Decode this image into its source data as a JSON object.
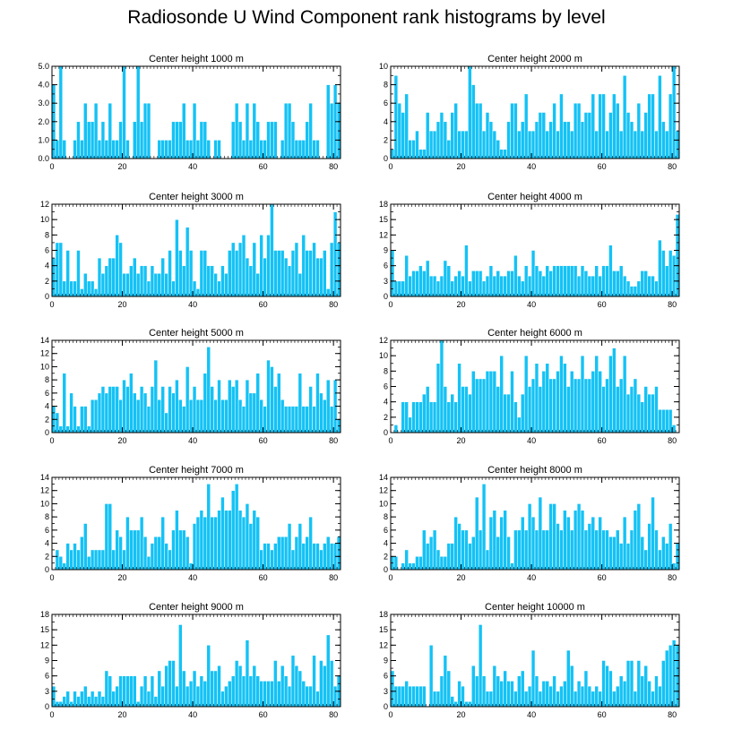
{
  "title": "Radiosonde U Wind Component rank histograms by level",
  "colors": {
    "bar": "#14c2f5",
    "bar_edge": "#ffffff",
    "axis": "#000000"
  },
  "chart_data": [
    {
      "type": "bar",
      "title": "Center height 1000 m",
      "xlim": [
        0,
        82
      ],
      "ylim": [
        0,
        5
      ],
      "xticks": [
        0,
        20,
        40,
        60,
        80
      ],
      "yticks": [
        0,
        1,
        2,
        3,
        4,
        5
      ],
      "ytick_labels": [
        "0.0",
        "1.0",
        "2.0",
        "3.0",
        "4.0",
        "5.0"
      ],
      "values": [
        4,
        1,
        5,
        1,
        0,
        0,
        1,
        2,
        1,
        3,
        2,
        2,
        3,
        1,
        2,
        1,
        3,
        1,
        1,
        2,
        5,
        1,
        0,
        2,
        5,
        2,
        3,
        3,
        0,
        0,
        1,
        1,
        1,
        1,
        2,
        2,
        2,
        3,
        1,
        1,
        3,
        1,
        2,
        2,
        1,
        0,
        1,
        1,
        0,
        0,
        0,
        2,
        3,
        2,
        1,
        3,
        1,
        3,
        2,
        1,
        1,
        2,
        2,
        2,
        0,
        1,
        3,
        3,
        2,
        1,
        1,
        1,
        2,
        3,
        1,
        1,
        0,
        0,
        4,
        3,
        4,
        3
      ]
    },
    {
      "type": "bar",
      "title": "Center height 2000 m",
      "xlim": [
        0,
        82
      ],
      "ylim": [
        0,
        10
      ],
      "xticks": [
        0,
        20,
        40,
        60,
        80
      ],
      "yticks": [
        0,
        2,
        4,
        6,
        8,
        10
      ],
      "ytick_labels": [
        "0",
        "2",
        "4",
        "6",
        "8",
        "10"
      ],
      "values": [
        1,
        9,
        6,
        5,
        7,
        2,
        2,
        3,
        1,
        1,
        5,
        3,
        3,
        4,
        5,
        4,
        2,
        5,
        6,
        3,
        3,
        3,
        10,
        8,
        6,
        6,
        3,
        5,
        4,
        3,
        2,
        1,
        1,
        4,
        6,
        6,
        3,
        4,
        7,
        3,
        3,
        4,
        5,
        5,
        3,
        4,
        6,
        3,
        7,
        4,
        4,
        3,
        6,
        6,
        4,
        5,
        5,
        7,
        3,
        7,
        7,
        3,
        5,
        7,
        6,
        3,
        9,
        5,
        4,
        3,
        6,
        3,
        5,
        7,
        7,
        3,
        9,
        4,
        3,
        7,
        10,
        3
      ]
    },
    {
      "type": "bar",
      "title": "Center height 3000 m",
      "xlim": [
        0,
        82
      ],
      "ylim": [
        0,
        12
      ],
      "xticks": [
        0,
        20,
        40,
        60,
        80
      ],
      "yticks": [
        0,
        2,
        4,
        6,
        8,
        10,
        12
      ],
      "ytick_labels": [
        "0",
        "2",
        "4",
        "6",
        "8",
        "10",
        "12"
      ],
      "values": [
        5,
        7,
        7,
        2,
        6,
        2,
        2,
        6,
        1,
        3,
        2,
        2,
        1,
        5,
        3,
        4,
        5,
        5,
        8,
        7,
        3,
        3,
        4,
        5,
        3,
        4,
        4,
        2,
        4,
        3,
        3,
        5,
        3,
        6,
        2,
        10,
        6,
        4,
        9,
        6,
        2,
        1,
        6,
        6,
        4,
        4,
        3,
        2,
        4,
        3,
        6,
        7,
        6,
        7,
        8,
        5,
        4,
        7,
        3,
        8,
        5,
        8,
        12,
        6,
        6,
        6,
        5,
        4,
        6,
        7,
        3,
        8,
        6,
        6,
        7,
        5,
        5,
        6,
        1,
        7,
        11,
        7
      ]
    },
    {
      "type": "bar",
      "title": "Center height 4000 m",
      "xlim": [
        0,
        82
      ],
      "ylim": [
        0,
        18
      ],
      "xticks": [
        0,
        20,
        40,
        60,
        80
      ],
      "yticks": [
        0,
        3,
        6,
        9,
        12,
        15,
        18
      ],
      "ytick_labels": [
        "0",
        "3",
        "6",
        "9",
        "12",
        "15",
        "18"
      ],
      "values": [
        9,
        3,
        3,
        3,
        8,
        4,
        5,
        5,
        6,
        5,
        7,
        4,
        4,
        3,
        4,
        7,
        6,
        3,
        4,
        5,
        4,
        10,
        3,
        5,
        5,
        5,
        3,
        4,
        6,
        4,
        5,
        4,
        4,
        5,
        5,
        8,
        4,
        3,
        6,
        4,
        9,
        6,
        5,
        4,
        6,
        5,
        6,
        6,
        6,
        6,
        6,
        6,
        6,
        4,
        6,
        5,
        4,
        4,
        6,
        4,
        6,
        6,
        10,
        5,
        5,
        6,
        4,
        3,
        2,
        2,
        3,
        5,
        5,
        4,
        4,
        3,
        11,
        9,
        6,
        9,
        8,
        16
      ]
    },
    {
      "type": "bar",
      "title": "Center height 5000 m",
      "xlim": [
        0,
        82
      ],
      "ylim": [
        0,
        14
      ],
      "xticks": [
        0,
        20,
        40,
        60,
        80
      ],
      "yticks": [
        0,
        2,
        4,
        6,
        8,
        10,
        12,
        14
      ],
      "ytick_labels": [
        "0",
        "2",
        "4",
        "6",
        "8",
        "10",
        "12",
        "14"
      ],
      "values": [
        4,
        3,
        1,
        9,
        1,
        6,
        4,
        1,
        4,
        4,
        1,
        5,
        5,
        6,
        7,
        6,
        7,
        7,
        7,
        5,
        8,
        7,
        9,
        6,
        5,
        7,
        6,
        4,
        7,
        11,
        5,
        7,
        3,
        7,
        6,
        8,
        5,
        4,
        10,
        5,
        7,
        5,
        5,
        9,
        13,
        7,
        5,
        8,
        5,
        5,
        8,
        7,
        8,
        5,
        4,
        8,
        6,
        6,
        9,
        5,
        4,
        11,
        10,
        7,
        9,
        5,
        4,
        4,
        4,
        4,
        9,
        4,
        4,
        7,
        4,
        9,
        6,
        5,
        8,
        4,
        8,
        2
      ]
    },
    {
      "type": "bar",
      "title": "Center height 6000 m",
      "xlim": [
        0,
        82
      ],
      "ylim": [
        0,
        12
      ],
      "xticks": [
        0,
        20,
        40,
        60,
        80
      ],
      "yticks": [
        0,
        2,
        4,
        6,
        8,
        10,
        12
      ],
      "ytick_labels": [
        "0",
        "2",
        "4",
        "6",
        "8",
        "10",
        "12"
      ],
      "values": [
        0,
        1,
        0,
        4,
        4,
        2,
        4,
        4,
        4,
        5,
        6,
        4,
        4,
        9,
        12,
        6,
        4,
        5,
        4,
        9,
        6,
        6,
        5,
        8,
        7,
        7,
        7,
        8,
        8,
        8,
        6,
        10,
        5,
        5,
        8,
        4,
        2,
        5,
        10,
        6,
        7,
        9,
        6,
        8,
        9,
        7,
        7,
        8,
        10,
        9,
        6,
        8,
        7,
        7,
        10,
        7,
        7,
        8,
        10,
        8,
        6,
        7,
        10,
        11,
        6,
        7,
        10,
        5,
        6,
        7,
        5,
        4,
        6,
        5,
        5,
        6,
        3,
        3,
        3,
        3,
        1,
        0
      ]
    },
    {
      "type": "bar",
      "title": "Center height 7000 m",
      "xlim": [
        0,
        82
      ],
      "ylim": [
        0,
        14
      ],
      "xticks": [
        0,
        20,
        40,
        60,
        80
      ],
      "yticks": [
        0,
        2,
        4,
        6,
        8,
        10,
        12,
        14
      ],
      "ytick_labels": [
        "0",
        "2",
        "4",
        "6",
        "8",
        "10",
        "12",
        "14"
      ],
      "values": [
        0,
        3,
        2,
        1,
        4,
        3,
        4,
        3,
        5,
        7,
        2,
        3,
        3,
        3,
        3,
        10,
        10,
        3,
        6,
        5,
        3,
        8,
        6,
        6,
        6,
        8,
        5,
        2,
        4,
        5,
        5,
        8,
        4,
        3,
        6,
        9,
        6,
        6,
        5,
        1,
        7,
        8,
        9,
        8,
        13,
        8,
        8,
        9,
        11,
        9,
        9,
        12,
        13,
        9,
        8,
        10,
        7,
        9,
        8,
        3,
        4,
        4,
        3,
        4,
        5,
        5,
        5,
        7,
        3,
        5,
        7,
        4,
        5,
        8,
        4,
        4,
        3,
        4,
        5,
        4,
        4,
        5
      ]
    },
    {
      "type": "bar",
      "title": "Center height 8000 m",
      "xlim": [
        0,
        82
      ],
      "ylim": [
        0,
        14
      ],
      "xticks": [
        0,
        20,
        40,
        60,
        80
      ],
      "yticks": [
        0,
        2,
        4,
        6,
        8,
        10,
        12,
        14
      ],
      "ytick_labels": [
        "0",
        "2",
        "4",
        "6",
        "8",
        "10",
        "12",
        "14"
      ],
      "values": [
        2,
        2,
        0,
        1,
        3,
        1,
        1,
        2,
        2,
        6,
        4,
        5,
        6,
        3,
        2,
        2,
        4,
        4,
        8,
        7,
        6,
        6,
        4,
        5,
        11,
        6,
        13,
        3,
        8,
        9,
        5,
        8,
        9,
        5,
        1,
        6,
        6,
        8,
        6,
        10,
        8,
        6,
        11,
        6,
        6,
        10,
        10,
        7,
        6,
        9,
        8,
        6,
        9,
        10,
        9,
        6,
        7,
        8,
        6,
        8,
        6,
        6,
        5,
        5,
        6,
        4,
        8,
        4,
        6,
        9,
        10,
        5,
        3,
        7,
        11,
        6,
        3,
        5,
        4,
        7,
        1,
        4
      ]
    },
    {
      "type": "bar",
      "title": "Center height 9000 m",
      "xlim": [
        0,
        82
      ],
      "ylim": [
        0,
        18
      ],
      "xticks": [
        0,
        20,
        40,
        60,
        80
      ],
      "yticks": [
        0,
        3,
        6,
        9,
        12,
        15,
        18
      ],
      "ytick_labels": [
        "0",
        "3",
        "6",
        "9",
        "12",
        "15",
        "18"
      ],
      "values": [
        4,
        1,
        1,
        2,
        3,
        1,
        3,
        2,
        3,
        4,
        2,
        3,
        2,
        3,
        2,
        7,
        6,
        3,
        4,
        6,
        6,
        6,
        6,
        6,
        1,
        4,
        6,
        3,
        6,
        2,
        7,
        4,
        8,
        9,
        9,
        4,
        16,
        7,
        4,
        5,
        7,
        4,
        6,
        5,
        12,
        7,
        7,
        8,
        3,
        4,
        5,
        6,
        9,
        8,
        6,
        13,
        6,
        8,
        6,
        5,
        5,
        5,
        5,
        9,
        5,
        8,
        6,
        4,
        10,
        8,
        7,
        5,
        4,
        4,
        10,
        3,
        9,
        8,
        14,
        9,
        4,
        6
      ]
    },
    {
      "type": "bar",
      "title": "Center height 10000 m",
      "xlim": [
        0,
        82
      ],
      "ylim": [
        0,
        18
      ],
      "xticks": [
        0,
        20,
        40,
        60,
        80
      ],
      "yticks": [
        0,
        3,
        6,
        9,
        12,
        15,
        18
      ],
      "ytick_labels": [
        "0",
        "3",
        "6",
        "9",
        "12",
        "15",
        "18"
      ],
      "values": [
        7,
        4,
        4,
        4,
        5,
        4,
        4,
        4,
        4,
        4,
        0,
        12,
        3,
        3,
        6,
        10,
        7,
        2,
        1,
        5,
        4,
        1,
        1,
        8,
        6,
        16,
        6,
        3,
        3,
        8,
        6,
        5,
        7,
        5,
        5,
        3,
        6,
        7,
        3,
        4,
        11,
        6,
        3,
        5,
        5,
        4,
        6,
        3,
        4,
        5,
        11,
        8,
        3,
        5,
        4,
        7,
        4,
        3,
        4,
        3,
        9,
        8,
        7,
        3,
        4,
        6,
        5,
        9,
        9,
        3,
        9,
        6,
        8,
        5,
        3,
        6,
        4,
        9,
        11,
        12,
        13,
        12
      ]
    }
  ]
}
